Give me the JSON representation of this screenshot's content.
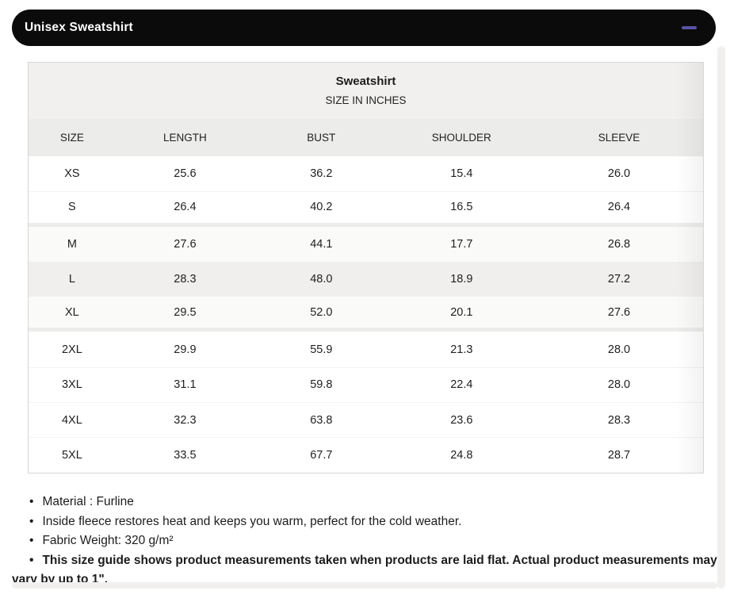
{
  "header": {
    "title": "Unisex Sweatshirt",
    "collapse_icon": "minus-icon",
    "bar_bg": "#0b0b0b",
    "accent_color": "#5b53a6"
  },
  "table": {
    "title": "Sweatshirt",
    "subtitle": "SIZE IN INCHES",
    "columns": [
      "SIZE",
      "LENGTH",
      "BUST",
      "SHOULDER",
      "SLEEVE"
    ],
    "rows": [
      {
        "cells": [
          "XS",
          "25.6",
          "36.2",
          "15.4",
          "26.0"
        ],
        "shade": "white"
      },
      {
        "cells": [
          "S",
          "26.4",
          "40.2",
          "16.5",
          "26.4"
        ],
        "shade": "white"
      },
      {
        "cells": [
          "M",
          "27.6",
          "44.1",
          "17.7",
          "26.8"
        ],
        "shade": "light"
      },
      {
        "cells": [
          "L",
          "28.3",
          "48.0",
          "18.9",
          "27.2"
        ],
        "shade": "gray"
      },
      {
        "cells": [
          "XL",
          "29.5",
          "52.0",
          "20.1",
          "27.6"
        ],
        "shade": "light"
      },
      {
        "cells": [
          "2XL",
          "29.9",
          "55.9",
          "21.3",
          "28.0"
        ],
        "shade": "white"
      },
      {
        "cells": [
          "3XL",
          "31.1",
          "59.8",
          "22.4",
          "28.0"
        ],
        "shade": "white"
      },
      {
        "cells": [
          "4XL",
          "32.3",
          "63.8",
          "23.6",
          "28.3"
        ],
        "shade": "white"
      },
      {
        "cells": [
          "5XL",
          "33.5",
          "67.7",
          "24.8",
          "28.7"
        ],
        "shade": "white"
      }
    ],
    "title_block_bg": "#f1f0ef",
    "header_row_bg": "#ececeb",
    "row_light_bg": "#fafaf9",
    "row_gray_bg": "#f0efee"
  },
  "notes": [
    {
      "text": "Material : Furline",
      "bold": false
    },
    {
      "text": "Inside fleece restores heat and keeps you warm, perfect for the cold weather.",
      "bold": false
    },
    {
      "text": "Fabric Weight: 320 g/m²",
      "bold": false
    },
    {
      "text": "This size guide shows product measurements taken when products are laid flat. Actual product measurements may vary by up to 1\".",
      "bold": true
    }
  ]
}
